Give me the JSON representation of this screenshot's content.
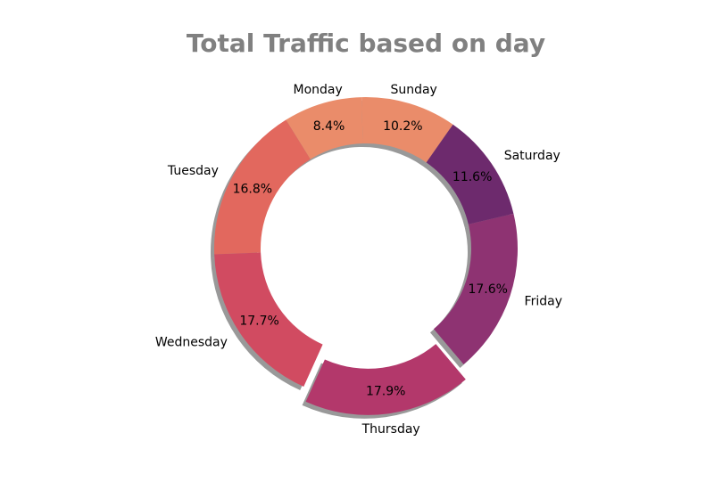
{
  "chart_data": {
    "type": "pie",
    "title": "Total Traffic based on day",
    "donut": true,
    "shadow": true,
    "slices": [
      {
        "label": "Sunday",
        "value": 10.2,
        "pct_label": "10.2%",
        "color": "#ea8c6a",
        "exploded": false
      },
      {
        "label": "Monday",
        "value": 8.4,
        "pct_label": "8.4%",
        "color": "#ea8c6a",
        "exploded": false
      },
      {
        "label": "Tuesday",
        "value": 16.8,
        "pct_label": "16.8%",
        "color": "#e2685e",
        "exploded": false
      },
      {
        "label": "Wednesday",
        "value": 17.7,
        "pct_label": "17.7%",
        "color": "#d14b61",
        "exploded": false
      },
      {
        "label": "Thursday",
        "value": 17.9,
        "pct_label": "17.9%",
        "color": "#b3386b",
        "exploded": true
      },
      {
        "label": "Friday",
        "value": 17.6,
        "pct_label": "17.6%",
        "color": "#8e3372",
        "exploded": false
      },
      {
        "label": "Saturday",
        "value": 11.6,
        "pct_label": "11.6%",
        "color": "#6d2a6d",
        "exploded": false
      }
    ]
  }
}
